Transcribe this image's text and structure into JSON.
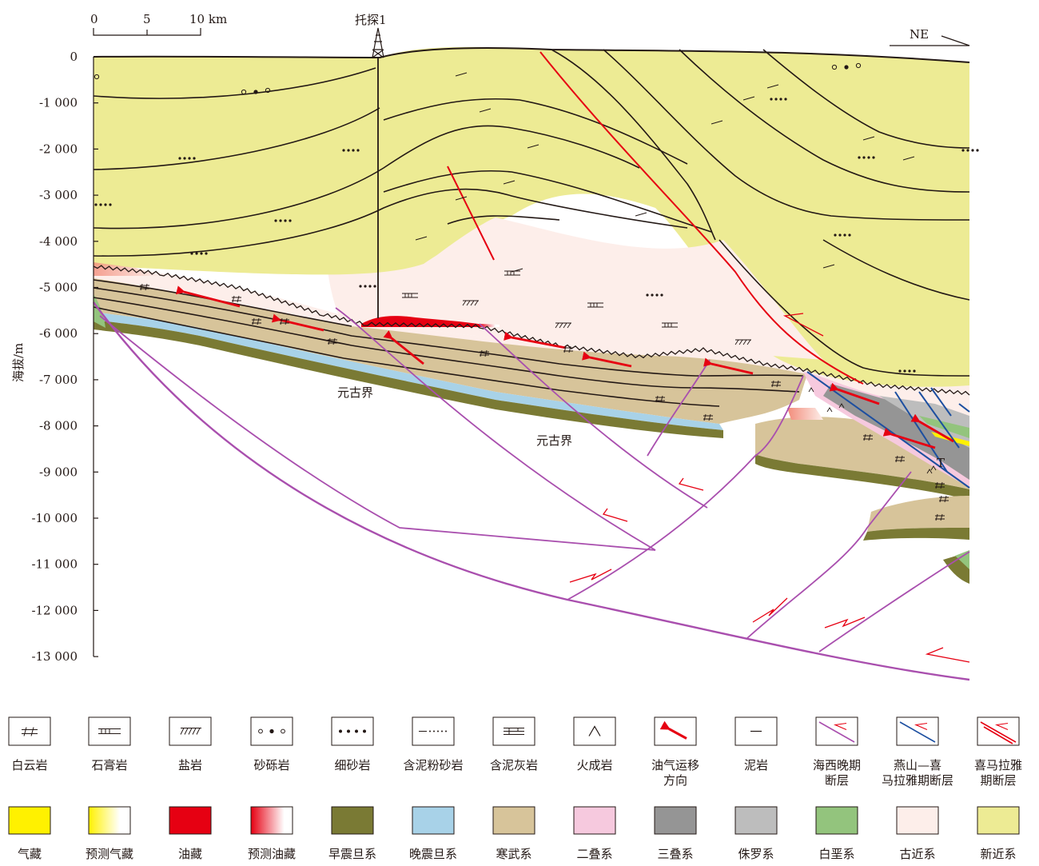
{
  "well": {
    "label": "托探1"
  },
  "orientation": "NE",
  "scale_bar": {
    "ticks": [
      "0",
      "5",
      "10 km"
    ]
  },
  "axis": {
    "label": "海拔/m",
    "ticks": [
      "0",
      "-1 000",
      "-2 000",
      "-3 000",
      "-4 000",
      "-5 000",
      "-6 000",
      "-7 000",
      "-8 000",
      "-9 000",
      "-10 000",
      "-11 000",
      "-12 000",
      "-13 000"
    ]
  },
  "labels": {
    "proterozoic_1": "元古界",
    "proterozoic_2": "元古界",
    "triassic_mark": "T"
  },
  "legend_row1": [
    {
      "symbol": "dolomite",
      "label": "白云岩"
    },
    {
      "symbol": "gypsum",
      "label": "石膏岩"
    },
    {
      "symbol": "salt",
      "label": "盐岩"
    },
    {
      "symbol": "glutenite",
      "label": "砂砾岩"
    },
    {
      "symbol": "fine-sandstone",
      "label": "细砂岩"
    },
    {
      "symbol": "muddy-siltstone",
      "label": "含泥粉砂岩"
    },
    {
      "symbol": "muddy-limestone",
      "label": "含泥灰岩"
    },
    {
      "symbol": "igneous",
      "label": "火成岩"
    },
    {
      "symbol": "migration-arrow",
      "label": "油气运移方向"
    },
    {
      "symbol": "mudstone",
      "label": "泥岩"
    },
    {
      "symbol": "fault-hercynian",
      "label": "海西晚期断层"
    },
    {
      "symbol": "fault-yanshan",
      "label": "燕山—喜马拉雅期断层"
    },
    {
      "symbol": "fault-himalayan",
      "label": "喜马拉雅期断层"
    }
  ],
  "legend_row2": [
    {
      "fill": "#FFF100",
      "label": "气藏"
    },
    {
      "fill": "gradient-gas",
      "label": "预测气藏"
    },
    {
      "fill": "#E60012",
      "label": "油藏"
    },
    {
      "fill": "gradient-oil",
      "label": "预测油藏"
    },
    {
      "fill": "#7A7A34",
      "label": "早震旦系"
    },
    {
      "fill": "#A8D2E8",
      "label": "晚震旦系"
    },
    {
      "fill": "#D7C49A",
      "label": "寒武系"
    },
    {
      "fill": "#F6C9DE",
      "label": "二叠系"
    },
    {
      "fill": "#959595",
      "label": "三叠系"
    },
    {
      "fill": "#BDBDBD",
      "label": "侏罗系"
    },
    {
      "fill": "#93C47D",
      "label": "白垩系"
    },
    {
      "fill": "#FDEEEA",
      "label": "古近系"
    },
    {
      "fill": "#EDEB94",
      "label": "新近系"
    }
  ]
}
